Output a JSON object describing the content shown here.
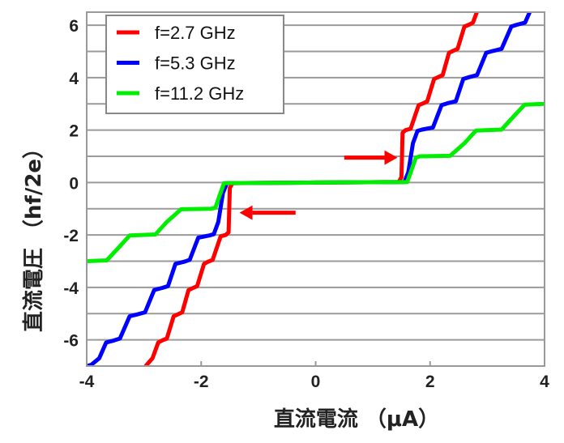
{
  "chart_data": {
    "type": "line",
    "title": "",
    "xlabel": "直流電流 （μA）",
    "ylabel": "直流電圧 （hf/2e）",
    "xlim": [
      -4,
      4
    ],
    "ylim": [
      -7,
      6.5
    ],
    "xticks": [
      "-4",
      "-2",
      "0",
      "2",
      "4"
    ],
    "xtick_values": [
      -4,
      -2,
      0,
      2,
      4
    ],
    "yticks": [
      "6",
      "4",
      "2",
      "0",
      "-2",
      "-4",
      "-6"
    ],
    "ytick_values": [
      6,
      4,
      2,
      0,
      -2,
      -4,
      -6
    ],
    "grid": "horizontal lines at every integer",
    "legend_position": "top-left",
    "series": [
      {
        "name": "f=2.7 GHz",
        "color": "#ff0000",
        "x": [
          -2.97,
          -2.85,
          -2.75,
          -2.68,
          -2.6,
          -2.48,
          -2.4,
          -2.33,
          -2.22,
          -2.14,
          -2.07,
          -1.95,
          -1.88,
          -1.8,
          -1.66,
          -1.57,
          -1.52,
          -1.5,
          -1.45,
          0,
          1.45,
          1.5,
          1.52,
          1.57,
          1.66,
          1.8,
          1.88,
          1.95,
          2.07,
          2.14,
          2.22,
          2.33,
          2.4,
          2.48,
          2.6,
          2.68,
          2.75,
          2.85
        ],
        "y": [
          -7,
          -6.7,
          -6.1,
          -6.02,
          -5.95,
          -5.1,
          -5.02,
          -4.95,
          -4.1,
          -4.02,
          -3.95,
          -3.1,
          -3.02,
          -2.95,
          -2.05,
          -2,
          -1.9,
          -0.2,
          -0.02,
          0,
          0.02,
          0.2,
          1.9,
          2,
          2.05,
          2.95,
          3.02,
          3.1,
          3.95,
          4.02,
          4.1,
          4.95,
          5.02,
          5.1,
          5.95,
          6.02,
          6.1,
          6.7
        ]
      },
      {
        "name": "f=5.3 GHz",
        "color": "#0000ff",
        "x": [
          -4,
          -3.92,
          -3.78,
          -3.66,
          -3.52,
          -3.42,
          -3.25,
          -3.1,
          -2.98,
          -2.82,
          -2.68,
          -2.58,
          -2.45,
          -2.3,
          -2.2,
          -2.05,
          -1.86,
          -1.78,
          -1.7,
          -1.62,
          -1.55,
          0,
          1.55,
          1.62,
          1.7,
          1.78,
          1.86,
          2.05,
          2.2,
          2.3,
          2.45,
          2.58,
          2.68,
          2.82,
          2.98,
          3.1,
          3.25,
          3.42,
          3.52,
          3.66,
          3.78
        ],
        "y": [
          -7,
          -6.95,
          -6.7,
          -6.1,
          -6.02,
          -5.95,
          -5.1,
          -5.02,
          -4.95,
          -4.1,
          -4.02,
          -3.95,
          -3.1,
          -3.02,
          -2.95,
          -2.1,
          -2.02,
          -1.97,
          -1.5,
          -0.4,
          -0.02,
          0,
          0.02,
          0.4,
          1.5,
          1.97,
          2.02,
          2.1,
          2.95,
          3.02,
          3.1,
          3.95,
          4.02,
          4.1,
          4.95,
          5.02,
          5.1,
          5.95,
          6.02,
          6.1,
          6.7
        ]
      },
      {
        "name": "f=11.2 GHz",
        "color": "#00ee00",
        "x": [
          -4,
          -3.65,
          -3.45,
          -3.25,
          -2.8,
          -2.6,
          -2.35,
          -1.82,
          -1.75,
          -1.68,
          -1.6,
          0,
          1.6,
          1.68,
          1.75,
          1.82,
          2.35,
          2.6,
          2.8,
          3.25,
          3.45,
          3.65,
          4
        ],
        "y": [
          -3,
          -2.97,
          -2.5,
          -2.02,
          -1.98,
          -1.5,
          -1.02,
          -1,
          -0.95,
          -0.5,
          -0.02,
          0,
          0.02,
          0.5,
          0.95,
          1,
          1.02,
          1.5,
          1.98,
          2.02,
          2.5,
          2.97,
          3
        ]
      }
    ],
    "annotations": [
      {
        "type": "arrow",
        "color": "#ff0000",
        "from": [
          0.5,
          0.95
        ],
        "to": [
          1.43,
          0.95
        ]
      },
      {
        "type": "arrow",
        "color": "#ff0000",
        "from": [
          -0.35,
          -1.15
        ],
        "to": [
          -1.33,
          -1.15
        ]
      }
    ]
  }
}
